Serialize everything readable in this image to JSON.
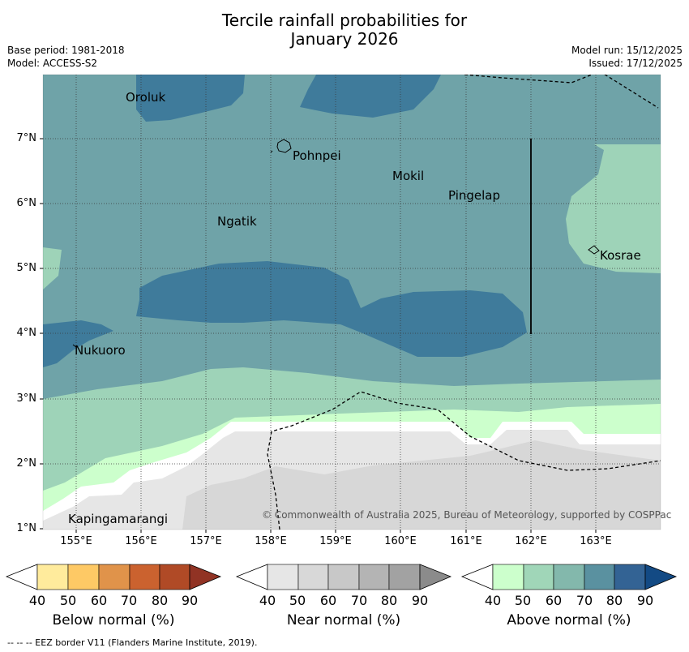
{
  "title_line1": "Tercile rainfall probabilities for",
  "title_line2": "January 2026",
  "base_period": "Base period: 1981-2018",
  "model": "Model: ACCESS-S2",
  "model_run": "Model run: 15/12/2025",
  "issued": "Issued: 17/12/2025",
  "lat_labels": [
    "7°N",
    "6°N",
    "5°N",
    "4°N",
    "3°N",
    "2°N",
    "1°N"
  ],
  "lon_labels": [
    "155°E",
    "156°E",
    "157°E",
    "158°E",
    "159°E",
    "160°E",
    "161°E",
    "162°E",
    "163°E"
  ],
  "places": {
    "oroluk": "Oroluk",
    "pohnpei": "Pohnpei",
    "mokil": "Mokil",
    "pingelap": "Pingelap",
    "ngatik": "Ngatik",
    "kosrae": "Kosrae",
    "nukuoro": "Nukuoro",
    "kapingamarangi": "Kapingamarangi"
  },
  "credit": "© Commonwealth of Australia 2025, Bureau of Meteorology, supported by COSPPac",
  "colorbars": {
    "below": {
      "label": "Below normal (%)",
      "colors": [
        "#ffeb9c",
        "#fec965",
        "#e0934a",
        "#cb622f",
        "#b04a26",
        "#913324"
      ]
    },
    "near": {
      "label": "Near normal (%)",
      "colors": [
        "#e6e6e6",
        "#d8d8d8",
        "#c8c8c8",
        "#b4b4b4",
        "#a2a2a2",
        "#8b8b8b"
      ]
    },
    "above": {
      "label": "Above normal (%)",
      "colors": [
        "#ccffcc",
        "#a0d6b8",
        "#83b8ac",
        "#5a91a0",
        "#336394",
        "#134a84"
      ]
    },
    "ticks": [
      "40",
      "50",
      "60",
      "70",
      "80",
      "90"
    ]
  },
  "footer": "--  --  -- EEZ border V11 (Flanders Marine Institute, 2019)."
}
